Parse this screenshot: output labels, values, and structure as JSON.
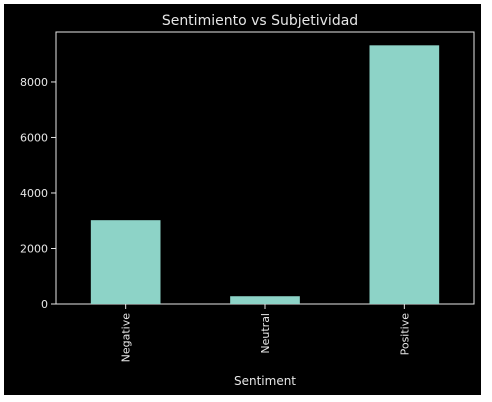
{
  "chart_data": {
    "type": "bar",
    "title": "Sentimiento vs Subjetividad",
    "xlabel": "Sentiment",
    "ylabel": "",
    "categories": [
      "Negative",
      "Neutral",
      "Positive"
    ],
    "values": [
      3020,
      280,
      9320
    ],
    "ylim": [
      0,
      9800
    ],
    "yticks": [
      0,
      2000,
      4000,
      6000,
      8000
    ],
    "grid": false,
    "colors": {
      "bar": "#8dd3c7",
      "background": "#000000",
      "text": "#e6e6e6",
      "axis": "#e6e6e6"
    }
  }
}
